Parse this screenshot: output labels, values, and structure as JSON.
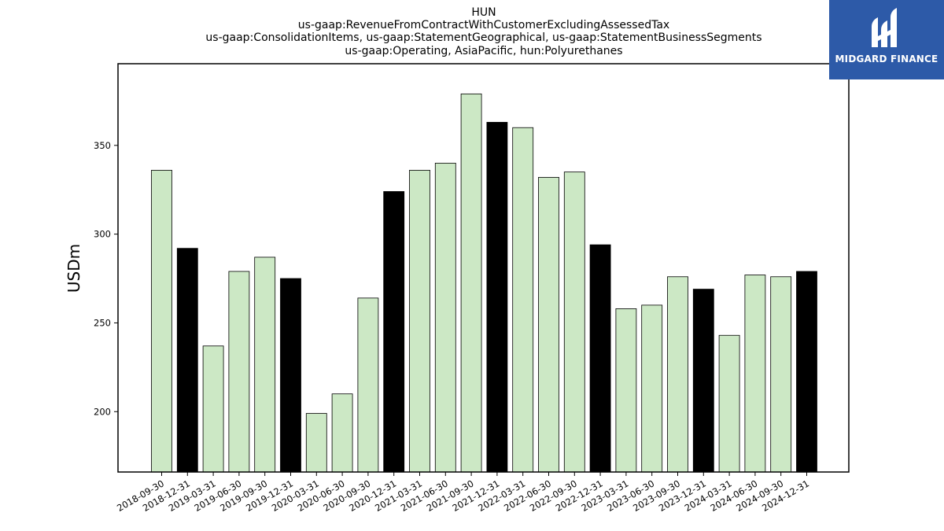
{
  "logo": {
    "text": "MIDGARD FINANCE"
  },
  "colors": {
    "regular": "#cce8c5",
    "highlight": "#000000",
    "logo_bg": "#2d5aa8"
  },
  "chart_data": {
    "type": "bar",
    "title": [
      "HUN",
      "us-gaap:RevenueFromContractWithCustomerExcludingAssessedTax",
      "us-gaap:ConsolidationItems, us-gaap:StatementGeographical, us-gaap:StatementBusinessSegments",
      "us-gaap:Operating, AsiaPacific, hun:Polyurethanes"
    ],
    "ylabel": "USDm",
    "ylim": [
      166,
      396
    ],
    "yticks": [
      200,
      250,
      300,
      350
    ],
    "categories": [
      "2018-09-30",
      "2018-12-31",
      "2019-03-31",
      "2019-06-30",
      "2019-09-30",
      "2019-12-31",
      "2020-03-31",
      "2020-06-30",
      "2020-09-30",
      "2020-12-31",
      "2021-03-31",
      "2021-06-30",
      "2021-09-30",
      "2021-12-31",
      "2022-03-31",
      "2022-06-30",
      "2022-09-30",
      "2022-12-31",
      "2023-03-31",
      "2023-06-30",
      "2023-09-30",
      "2023-12-31",
      "2024-03-31",
      "2024-06-30",
      "2024-09-30",
      "2024-12-31"
    ],
    "values": [
      336,
      292,
      237,
      279,
      287,
      275,
      199,
      210,
      264,
      324,
      336,
      340,
      379,
      363,
      360,
      332,
      335,
      294,
      258,
      260,
      276,
      269,
      243,
      277,
      276,
      279
    ],
    "highlight_year_end": [
      false,
      true,
      false,
      false,
      false,
      true,
      false,
      false,
      false,
      true,
      false,
      false,
      false,
      true,
      false,
      false,
      false,
      true,
      false,
      false,
      false,
      true,
      false,
      false,
      false,
      true
    ]
  }
}
